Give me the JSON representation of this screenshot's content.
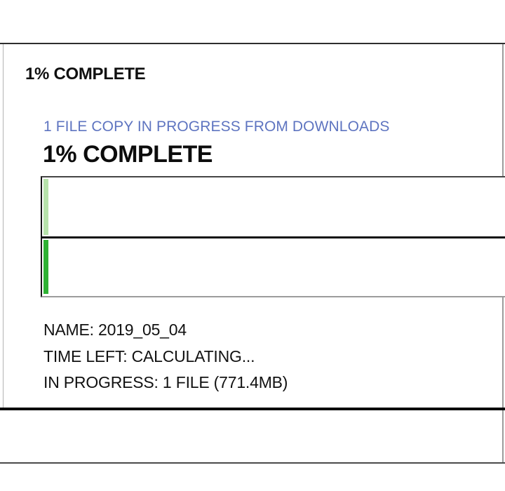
{
  "window": {
    "title": "1% COMPLETE"
  },
  "copy_dialog": {
    "status_line": "1 FILE COPY IN PROGRESS FROM DOWNLOADS",
    "percent_heading": "1% COMPLETE",
    "progress_bars": [
      {
        "label": "overall-progress",
        "percent": 1
      },
      {
        "label": "current-file-progress",
        "percent": 1
      }
    ],
    "details": {
      "name_line": "NAME: 2019_05_04",
      "time_left_line": "TIME LEFT: CALCULATING...",
      "in_progress_line": "IN PROGRESS: 1 FILE (771.4MB)"
    }
  },
  "colors": {
    "accent_blue": "#5e74c0",
    "progress_light_green": "#b7e2ab",
    "progress_dark_green": "#2fb234",
    "text_black": "#111111"
  }
}
